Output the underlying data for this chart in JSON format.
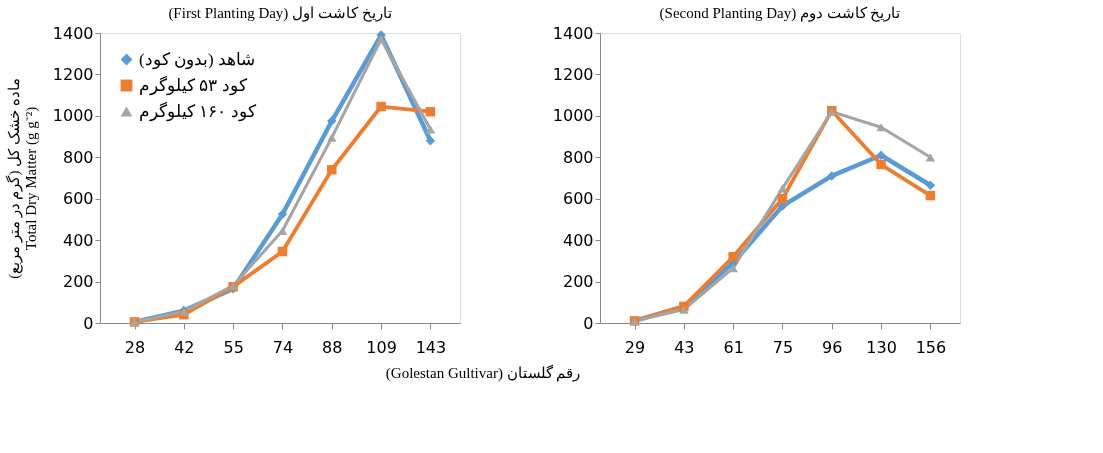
{
  "chart_data": [
    {
      "type": "line",
      "title": "(First Planting Day) تاریخ کاشت اول",
      "ylabel": "ماده خشک کل (گرم در متر مربع)\nTotal Dry Matter (g g⁻²)",
      "annotations": [
        "(Golestan Gultivar) رقم گلستان"
      ],
      "categories": [
        "28",
        "42",
        "55",
        "74",
        "88",
        "109",
        "143"
      ],
      "ylim": [
        0,
        1400
      ],
      "yticks": [
        0,
        200,
        400,
        600,
        800,
        1000,
        1200,
        1400
      ],
      "grid": false,
      "legend": "top left",
      "series": [
        {
          "name": "شاهد (بدون کود)",
          "color": "#5b9bd5",
          "marker": "diamond",
          "values": [
            5,
            60,
            165,
            525,
            975,
            1390,
            880
          ]
        },
        {
          "name": "کود ۵۳ کیلوگرم",
          "color": "#ed7d31",
          "marker": "square",
          "values": [
            5,
            40,
            175,
            345,
            740,
            1045,
            1020
          ]
        },
        {
          "name": "کود ۱۶۰ کیلوگرم",
          "color": "#a5a5a5",
          "marker": "triangle",
          "values": [
            5,
            55,
            180,
            445,
            895,
            1370,
            935
          ]
        }
      ]
    },
    {
      "type": "line",
      "title": "(Second Planting Day) تاریخ کاشت دوم",
      "categories": [
        "29",
        "43",
        "61",
        "75",
        "96",
        "130",
        "156"
      ],
      "ylim": [
        0,
        1400
      ],
      "yticks": [
        0,
        200,
        400,
        600,
        800,
        1000,
        1200,
        1400
      ],
      "grid": false,
      "series": [
        {
          "color": "#5b9bd5",
          "marker": "diamond",
          "values": [
            10,
            80,
            290,
            565,
            710,
            810,
            665
          ]
        },
        {
          "color": "#ed7d31",
          "marker": "square",
          "values": [
            10,
            80,
            320,
            600,
            1025,
            765,
            615
          ]
        },
        {
          "color": "#a5a5a5",
          "marker": "triangle",
          "values": [
            10,
            65,
            265,
            650,
            1020,
            945,
            800
          ]
        }
      ]
    }
  ]
}
